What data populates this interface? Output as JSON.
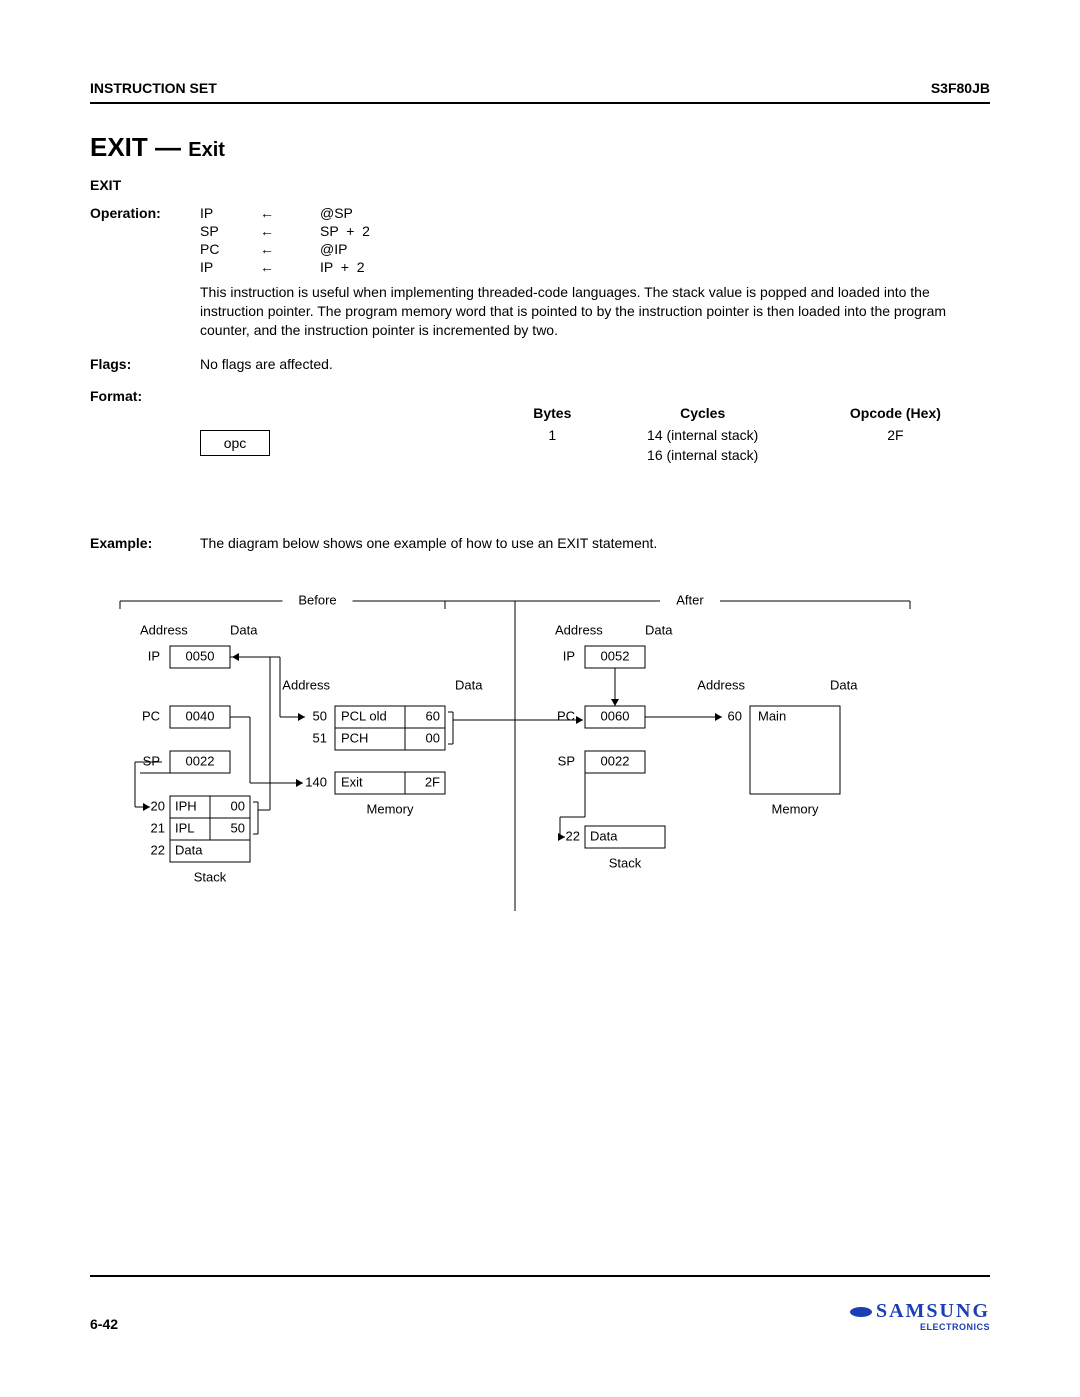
{
  "header": {
    "left": "INSTRUCTION SET",
    "right": "S3F80JB"
  },
  "title": {
    "main": "EXIT",
    "dash": " — ",
    "sub": "Exit"
  },
  "mnemonic": "EXIT",
  "labels": {
    "operation": "Operation:",
    "flags": "Flags:",
    "format": "Format:",
    "example": "Example:"
  },
  "operation": {
    "rows": [
      {
        "dest": "IP",
        "arrow": "←",
        "src": "@SP"
      },
      {
        "dest": "SP",
        "arrow": "←",
        "src": "SP  +  2"
      },
      {
        "dest": "PC",
        "arrow": "←",
        "src": "@IP"
      },
      {
        "dest": "IP",
        "arrow": "←",
        "src": "IP  +  2"
      }
    ],
    "description": "This instruction is useful when implementing threaded-code languages. The stack value is popped and loaded into the instruction pointer. The program memory word that is pointed to by the instruction pointer is then loaded into the program counter, and the instruction pointer is incremented by two."
  },
  "flags_text": "No flags are affected.",
  "format": {
    "opc": "opc",
    "head": {
      "bytes": "Bytes",
      "cycles": "Cycles",
      "opcode": "Opcode (Hex)"
    },
    "rows": [
      {
        "bytes": "1",
        "cycles": "14 (internal stack)",
        "opcode": "2F"
      },
      {
        "bytes": "",
        "cycles": "16 (internal stack)",
        "opcode": ""
      }
    ]
  },
  "example_text": "The diagram below shows one example of how to use an EXIT statement.",
  "diagram": {
    "stroke": "#000000",
    "font_size": 13,
    "before_label": "Before",
    "after_label": "After",
    "address_label": "Address",
    "data_label": "Data",
    "memory_label": "Memory",
    "stack_label": "Stack",
    "before": {
      "regs": [
        {
          "name": "IP",
          "val": "0050"
        },
        {
          "name": "PC",
          "val": "0040"
        },
        {
          "name": "SP",
          "val": "0022"
        }
      ],
      "stack": {
        "addr": [
          "20",
          "21",
          "22"
        ],
        "rows": [
          {
            "label": "IPH",
            "data": "00"
          },
          {
            "label": "IPL",
            "data": "50"
          },
          {
            "label": "Data",
            "data": ""
          }
        ]
      },
      "mem": {
        "addr": [
          "50",
          "51",
          "140"
        ],
        "rows": [
          {
            "label": "PCL old",
            "data": "60"
          },
          {
            "label": "PCH",
            "data": "00"
          },
          {
            "label": "Exit",
            "data": "2F"
          }
        ]
      }
    },
    "after": {
      "regs": [
        {
          "name": "IP",
          "val": "0052"
        },
        {
          "name": "PC",
          "val": "0060"
        },
        {
          "name": "SP",
          "val": "0022"
        }
      ],
      "stack": {
        "addr": [
          "22"
        ],
        "rows": [
          {
            "label": "Data",
            "data": ""
          }
        ]
      },
      "mem": {
        "addr": [
          "60"
        ],
        "rows": [
          {
            "label": "Main",
            "data": ""
          }
        ]
      }
    }
  },
  "footer": {
    "page": "6-42",
    "brand": "SAMSUNG",
    "brand_sub": "ELECTRONICS"
  }
}
